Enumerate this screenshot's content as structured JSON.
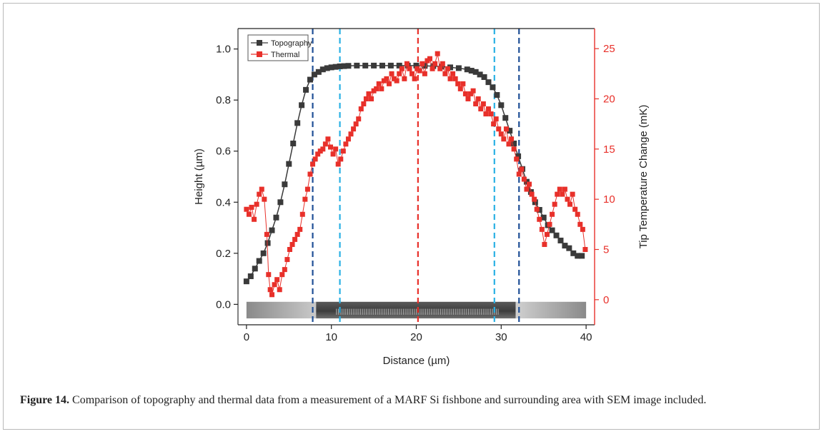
{
  "caption": {
    "label": "Figure 14.",
    "text": "Comparison of topography and thermal data from a measurement of a MARF Si fishbone and surrounding area with SEM image included."
  },
  "chart_data": {
    "type": "scatter",
    "xlabel": "Distance (µm)",
    "ylabel": "Height (µm)",
    "y2label": "Tip Temperature Change (mK)",
    "xlim": [
      -1,
      41
    ],
    "ylim": [
      -0.08,
      1.08
    ],
    "y2lim": [
      -2.5,
      27
    ],
    "xticks": [
      0,
      10,
      20,
      30,
      40
    ],
    "yticks": [
      0.0,
      0.2,
      0.4,
      0.6,
      0.8,
      1.0
    ],
    "y2ticks": [
      0,
      5,
      10,
      15,
      20,
      25
    ],
    "colors": {
      "topography": "#3a3a3a",
      "thermal": "#e8302a",
      "left_axis": "#333333",
      "right_axis": "#e8302a",
      "dark_blue": "#1f4f96",
      "light_blue": "#2ab0e4",
      "red_line": "#e8302a"
    },
    "legend": {
      "position": "top-left",
      "entries": [
        "Topography",
        "Thermal"
      ]
    },
    "vertical_lines": [
      {
        "x": 7.8,
        "color": "dark_blue"
      },
      {
        "x": 11.0,
        "color": "light_blue"
      },
      {
        "x": 20.2,
        "color": "red_line"
      },
      {
        "x": 29.2,
        "color": "light_blue"
      },
      {
        "x": 32.1,
        "color": "dark_blue"
      }
    ],
    "sem_strip": {
      "x_start": 0,
      "x_end": 40,
      "y_top": 0.01,
      "y_bottom": -0.055,
      "fishbone_x": [
        8.2,
        31.7
      ]
    },
    "series": [
      {
        "name": "Topography",
        "axis": "left",
        "x": [
          0,
          0.5,
          1,
          1.5,
          2,
          2.5,
          3,
          3.5,
          4,
          4.5,
          5,
          5.5,
          6,
          6.5,
          7,
          7.5,
          8,
          8.5,
          9,
          9.5,
          10,
          10.5,
          11,
          11.5,
          12,
          13,
          14,
          15,
          16,
          17,
          18,
          19,
          20,
          21,
          22,
          23,
          24,
          25,
          26,
          26.5,
          27,
          27.5,
          28,
          28.5,
          29,
          29.5,
          30,
          30.5,
          31,
          31.5,
          32,
          32.5,
          33,
          33.5,
          34,
          34.5,
          35,
          35.5,
          36,
          36.5,
          37,
          37.5,
          38,
          38.5,
          39,
          39.5
        ],
        "values": [
          0.09,
          0.11,
          0.14,
          0.17,
          0.2,
          0.24,
          0.29,
          0.34,
          0.4,
          0.47,
          0.55,
          0.63,
          0.71,
          0.78,
          0.84,
          0.88,
          0.9,
          0.91,
          0.92,
          0.925,
          0.928,
          0.93,
          0.932,
          0.933,
          0.934,
          0.935,
          0.935,
          0.935,
          0.935,
          0.935,
          0.935,
          0.935,
          0.935,
          0.934,
          0.933,
          0.931,
          0.928,
          0.925,
          0.92,
          0.915,
          0.91,
          0.9,
          0.89,
          0.87,
          0.85,
          0.82,
          0.78,
          0.73,
          0.68,
          0.63,
          0.58,
          0.53,
          0.48,
          0.44,
          0.4,
          0.37,
          0.34,
          0.31,
          0.29,
          0.27,
          0.25,
          0.23,
          0.22,
          0.2,
          0.19,
          0.19
        ]
      },
      {
        "name": "Thermal",
        "axis": "right",
        "x": [
          0,
          0.3,
          0.6,
          0.9,
          1.2,
          1.5,
          1.8,
          2.1,
          2.4,
          2.6,
          2.8,
          3.0,
          3.3,
          3.6,
          3.9,
          4.2,
          4.5,
          4.8,
          5.1,
          5.4,
          5.7,
          6.0,
          6.3,
          6.6,
          6.9,
          7.2,
          7.5,
          7.8,
          8.1,
          8.4,
          8.7,
          9.0,
          9.3,
          9.6,
          9.9,
          10.2,
          10.5,
          10.8,
          11.1,
          11.4,
          11.7,
          12.0,
          12.3,
          12.6,
          12.9,
          13.2,
          13.5,
          13.8,
          14.1,
          14.4,
          14.7,
          15.0,
          15.3,
          15.6,
          15.9,
          16.2,
          16.5,
          16.8,
          17.1,
          17.4,
          17.7,
          18.0,
          18.3,
          18.6,
          18.9,
          19.2,
          19.5,
          19.8,
          20.1,
          20.4,
          20.7,
          21.0,
          21.3,
          21.6,
          21.9,
          22.2,
          22.5,
          22.8,
          23.1,
          23.4,
          23.7,
          24.0,
          24.3,
          24.6,
          24.9,
          25.2,
          25.5,
          25.8,
          26.1,
          26.4,
          26.7,
          27.0,
          27.3,
          27.6,
          27.9,
          28.2,
          28.5,
          28.8,
          29.1,
          29.4,
          29.7,
          30.0,
          30.3,
          30.6,
          30.9,
          31.2,
          31.5,
          31.8,
          32.1,
          32.4,
          32.7,
          33.0,
          33.3,
          33.6,
          33.9,
          34.2,
          34.5,
          34.8,
          35.1,
          35.4,
          35.7,
          36.0,
          36.3,
          36.6,
          36.9,
          37.2,
          37.5,
          37.8,
          38.1,
          38.4,
          38.7,
          39.0,
          39.3,
          39.6,
          39.9
        ],
        "values": [
          9.0,
          8.5,
          9.2,
          8.0,
          9.5,
          10.5,
          11.0,
          10.0,
          6.5,
          2.5,
          1.0,
          0.5,
          1.5,
          2.0,
          1.0,
          2.5,
          3.0,
          4.0,
          5.0,
          5.5,
          6.0,
          6.5,
          7.0,
          8.5,
          10.0,
          11.0,
          12.5,
          13.5,
          14.0,
          14.5,
          14.8,
          15.0,
          15.5,
          16.0,
          15.2,
          14.5,
          15.0,
          13.5,
          14.0,
          14.8,
          15.5,
          16.0,
          16.5,
          17.0,
          17.5,
          18.0,
          19.0,
          19.5,
          20.0,
          20.5,
          20.0,
          20.8,
          21.0,
          21.5,
          21.0,
          21.8,
          22.0,
          21.5,
          22.5,
          22.0,
          21.8,
          22.5,
          23.0,
          22.0,
          23.5,
          23.0,
          22.5,
          22.0,
          23.0,
          22.8,
          23.5,
          22.5,
          23.8,
          24.0,
          23.0,
          23.5,
          24.5,
          23.0,
          23.5,
          22.5,
          23.0,
          22.0,
          22.5,
          22.0,
          21.5,
          21.0,
          21.5,
          20.5,
          20.0,
          20.5,
          20.8,
          19.5,
          20.0,
          19.0,
          19.5,
          18.5,
          19.0,
          18.5,
          17.5,
          18.0,
          17.0,
          16.5,
          16.0,
          17.0,
          15.5,
          16.0,
          15.0,
          14.0,
          12.5,
          13.0,
          12.0,
          11.0,
          11.5,
          10.5,
          10.0,
          9.0,
          8.0,
          7.0,
          5.5,
          6.5,
          7.5,
          8.5,
          9.5,
          10.5,
          11.0,
          10.5,
          11.0,
          10.0,
          9.5,
          10.5,
          9.0,
          8.5,
          7.5,
          7.0,
          5.0
        ]
      }
    ]
  }
}
